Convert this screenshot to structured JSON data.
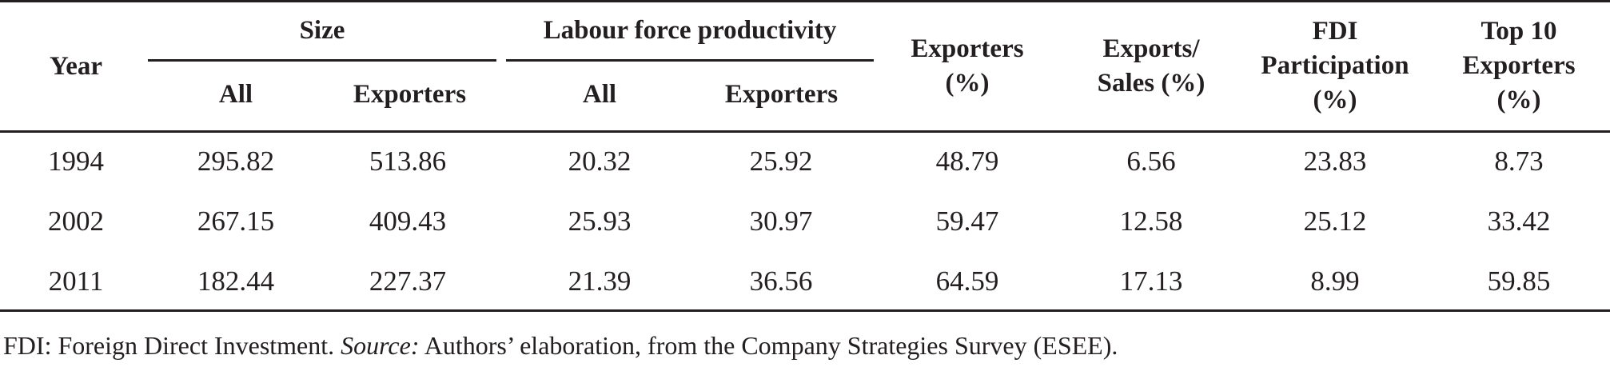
{
  "table": {
    "header": {
      "year": "Year",
      "size": "Size",
      "labour": "Labour force productivity",
      "size_all": "All",
      "size_exporters": "Exporters",
      "labour_all": "All",
      "labour_exporters": "Exporters",
      "exporters_pct": [
        "Exporters",
        "(%)"
      ],
      "exports_sales": [
        "Exports/",
        "Sales (%)"
      ],
      "fdi": [
        "FDI",
        "Participation",
        "(%)"
      ],
      "top10": [
        "Top 10",
        "Exporters",
        "(%)"
      ]
    },
    "rows": [
      [
        "1994",
        "295.82",
        "513.86",
        "20.32",
        "25.92",
        "48.79",
        "6.56",
        "23.83",
        "8.73"
      ],
      [
        "2002",
        "267.15",
        "409.43",
        "25.93",
        "30.97",
        "59.47",
        "12.58",
        "25.12",
        "33.42"
      ],
      [
        "2011",
        "182.44",
        "227.37",
        "21.39",
        "36.56",
        "64.59",
        "17.13",
        "8.99",
        "59.85"
      ]
    ]
  },
  "footnote": {
    "prefix": "FDI: Foreign Direct Investment. ",
    "source_label": "Source:",
    "text": " Authors’ elaboration, from the Company Strategies Survey (ESEE)."
  }
}
